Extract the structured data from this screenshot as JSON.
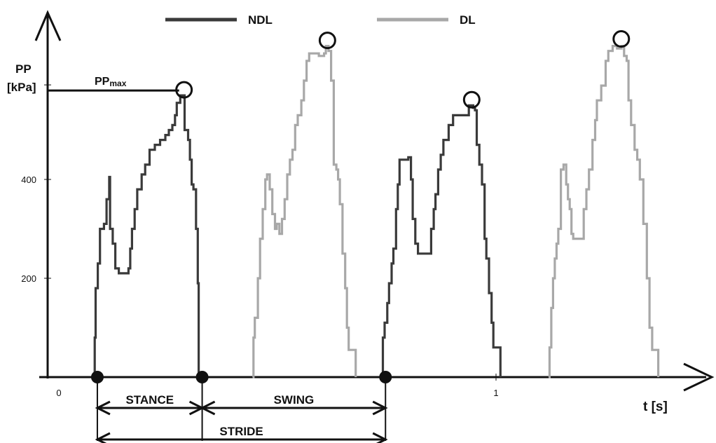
{
  "chart_data": {
    "type": "line",
    "ylabel": "PP",
    "yunit": "[kPa]",
    "xlabel": "t [s]",
    "x_ticks": [
      {
        "value": 0,
        "label": "0"
      },
      {
        "value": 1,
        "label": "1"
      }
    ],
    "y_ticks": [
      {
        "value": 200,
        "label": "200"
      },
      {
        "value": 400,
        "label": "400"
      }
    ],
    "xlim": [
      0,
      1.52
    ],
    "ylim": [
      0,
      730
    ],
    "legend": {
      "position": "top",
      "entries": [
        {
          "name": "NDL",
          "color": "#3a3a3a"
        },
        {
          "name": "DL",
          "color": "#a8a8a8"
        }
      ]
    },
    "ppmax_label": {
      "base": "PP",
      "sub": "max"
    },
    "series": [
      {
        "name": "NDL",
        "color": "#3a3a3a",
        "points": [
          [
            0.083,
            0
          ],
          [
            0.085,
            80
          ],
          [
            0.087,
            180
          ],
          [
            0.092,
            230
          ],
          [
            0.097,
            300
          ],
          [
            0.106,
            310
          ],
          [
            0.112,
            360
          ],
          [
            0.118,
            405
          ],
          [
            0.12,
            300
          ],
          [
            0.126,
            270
          ],
          [
            0.132,
            220
          ],
          [
            0.14,
            210
          ],
          [
            0.16,
            210
          ],
          [
            0.162,
            220
          ],
          [
            0.166,
            260
          ],
          [
            0.17,
            300
          ],
          [
            0.176,
            340
          ],
          [
            0.182,
            380
          ],
          [
            0.192,
            410
          ],
          [
            0.2,
            430
          ],
          [
            0.21,
            460
          ],
          [
            0.222,
            470
          ],
          [
            0.234,
            480
          ],
          [
            0.246,
            490
          ],
          [
            0.254,
            500
          ],
          [
            0.262,
            510
          ],
          [
            0.268,
            530
          ],
          [
            0.272,
            555
          ],
          [
            0.28,
            570
          ],
          [
            0.285,
            570
          ],
          [
            0.29,
            500
          ],
          [
            0.298,
            480
          ],
          [
            0.302,
            440
          ],
          [
            0.306,
            390
          ],
          [
            0.31,
            380
          ],
          [
            0.316,
            300
          ],
          [
            0.32,
            190
          ],
          [
            0.322,
            0
          ]
        ]
      },
      {
        "name": "DL",
        "color": "#a8a8a8",
        "points": [
          [
            0.445,
            0
          ],
          [
            0.447,
            80
          ],
          [
            0.45,
            120
          ],
          [
            0.457,
            200
          ],
          [
            0.462,
            280
          ],
          [
            0.468,
            340
          ],
          [
            0.474,
            400
          ],
          [
            0.478,
            410
          ],
          [
            0.484,
            380
          ],
          [
            0.49,
            330
          ],
          [
            0.496,
            300
          ],
          [
            0.5,
            310
          ],
          [
            0.506,
            290
          ],
          [
            0.512,
            320
          ],
          [
            0.518,
            360
          ],
          [
            0.524,
            410
          ],
          [
            0.53,
            440
          ],
          [
            0.536,
            460
          ],
          [
            0.542,
            510
          ],
          [
            0.548,
            530
          ],
          [
            0.556,
            560
          ],
          [
            0.562,
            600
          ],
          [
            0.568,
            640
          ],
          [
            0.574,
            655
          ],
          [
            0.586,
            655
          ],
          [
            0.596,
            650
          ],
          [
            0.608,
            655
          ],
          [
            0.612,
            670
          ],
          [
            0.618,
            660
          ],
          [
            0.624,
            600
          ],
          [
            0.63,
            430
          ],
          [
            0.636,
            420
          ],
          [
            0.64,
            400
          ],
          [
            0.644,
            350
          ],
          [
            0.65,
            250
          ],
          [
            0.656,
            180
          ],
          [
            0.66,
            100
          ],
          [
            0.664,
            55
          ],
          [
            0.676,
            55
          ],
          [
            0.68,
            0
          ]
        ]
      },
      {
        "name": "NDL",
        "color": "#3a3a3a",
        "points": [
          [
            0.74,
            0
          ],
          [
            0.742,
            80
          ],
          [
            0.746,
            110
          ],
          [
            0.752,
            150
          ],
          [
            0.756,
            190
          ],
          [
            0.762,
            230
          ],
          [
            0.766,
            260
          ],
          [
            0.772,
            340
          ],
          [
            0.776,
            390
          ],
          [
            0.78,
            440
          ],
          [
            0.8,
            445
          ],
          [
            0.806,
            400
          ],
          [
            0.81,
            320
          ],
          [
            0.816,
            270
          ],
          [
            0.822,
            250
          ],
          [
            0.85,
            250
          ],
          [
            0.852,
            300
          ],
          [
            0.858,
            340
          ],
          [
            0.862,
            370
          ],
          [
            0.868,
            420
          ],
          [
            0.874,
            450
          ],
          [
            0.88,
            480
          ],
          [
            0.892,
            510
          ],
          [
            0.902,
            530
          ],
          [
            0.932,
            530
          ],
          [
            0.938,
            550
          ],
          [
            0.948,
            545
          ],
          [
            0.952,
            540
          ],
          [
            0.956,
            470
          ],
          [
            0.962,
            430
          ],
          [
            0.968,
            390
          ],
          [
            0.974,
            280
          ],
          [
            0.978,
            240
          ],
          [
            0.984,
            170
          ],
          [
            0.99,
            110
          ],
          [
            0.994,
            60
          ],
          [
            1.004,
            60
          ],
          [
            1.01,
            0
          ]
        ]
      },
      {
        "name": "DL",
        "color": "#a8a8a8",
        "points": [
          [
            1.12,
            0
          ],
          [
            1.122,
            60
          ],
          [
            1.126,
            140
          ],
          [
            1.13,
            200
          ],
          [
            1.134,
            240
          ],
          [
            1.138,
            270
          ],
          [
            1.142,
            300
          ],
          [
            1.148,
            420
          ],
          [
            1.154,
            430
          ],
          [
            1.16,
            390
          ],
          [
            1.164,
            360
          ],
          [
            1.168,
            340
          ],
          [
            1.172,
            290
          ],
          [
            1.176,
            280
          ],
          [
            1.196,
            280
          ],
          [
            1.2,
            340
          ],
          [
            1.206,
            380
          ],
          [
            1.212,
            420
          ],
          [
            1.22,
            480
          ],
          [
            1.226,
            520
          ],
          [
            1.23,
            560
          ],
          [
            1.24,
            590
          ],
          [
            1.25,
            640
          ],
          [
            1.256,
            660
          ],
          [
            1.266,
            670
          ],
          [
            1.276,
            665
          ],
          [
            1.286,
            670
          ],
          [
            1.292,
            650
          ],
          [
            1.298,
            640
          ],
          [
            1.302,
            560
          ],
          [
            1.308,
            510
          ],
          [
            1.316,
            460
          ],
          [
            1.322,
            440
          ],
          [
            1.328,
            400
          ],
          [
            1.336,
            310
          ],
          [
            1.344,
            200
          ],
          [
            1.35,
            100
          ],
          [
            1.356,
            55
          ],
          [
            1.366,
            55
          ],
          [
            1.37,
            0
          ]
        ]
      }
    ],
    "peak_markers": [
      {
        "x": 0.287,
        "y": 570
      },
      {
        "x": 0.614,
        "y": 670
      },
      {
        "x": 0.943,
        "y": 550
      },
      {
        "x": 1.284,
        "y": 673
      }
    ],
    "ppmax_level": 580,
    "event_markers": [
      {
        "x": 0.083,
        "y": 0
      },
      {
        "x": 0.322,
        "y": 0
      },
      {
        "x": 0.74,
        "y": 0
      }
    ],
    "phase_annotations": [
      {
        "label": "STANCE",
        "from": 0.083,
        "to": 0.322
      },
      {
        "label": "SWING",
        "from": 0.322,
        "to": 0.74
      },
      {
        "label": "STRIDE",
        "from": 0.083,
        "to": 0.74
      }
    ]
  }
}
